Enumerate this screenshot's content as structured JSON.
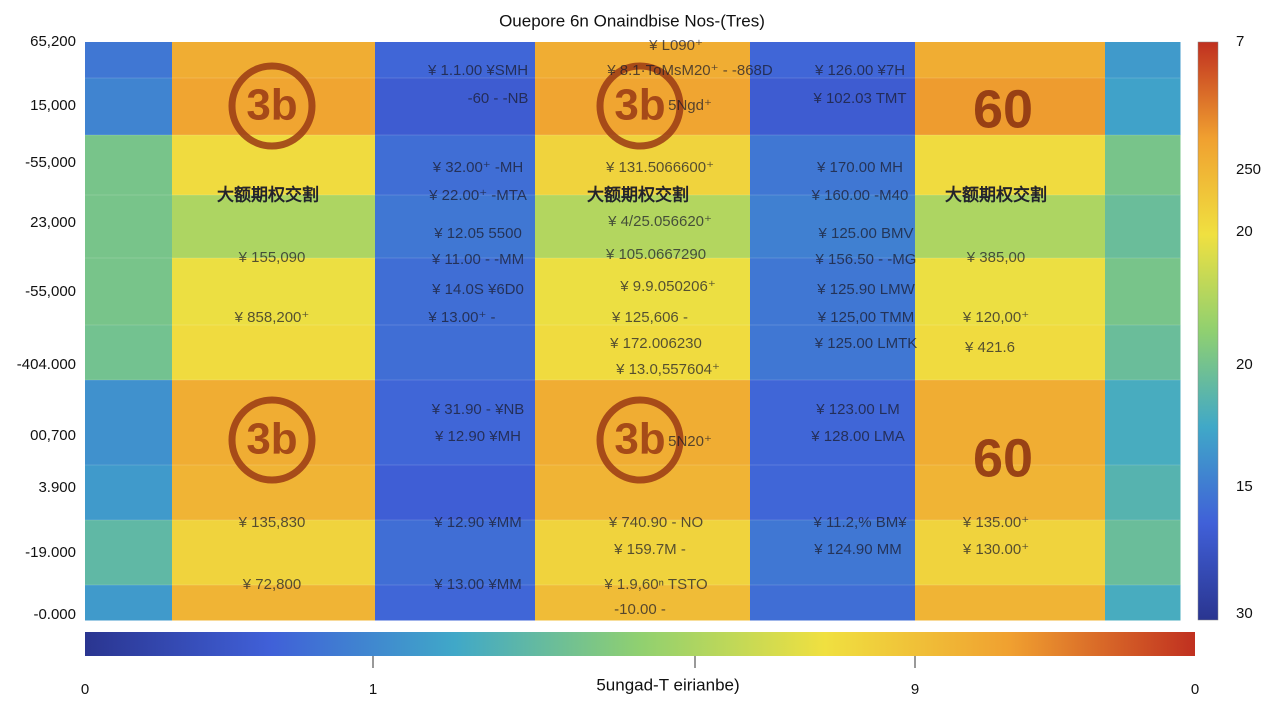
{
  "chart_data": {
    "type": "heatmap",
    "title": "Ouepore 6n Onaindbise Nos-(Tres)",
    "x_label": "5ungad-T eirianbe)",
    "y_categories": [
      "65,200",
      "15,000",
      "-55,000",
      "23,000",
      "-55,000",
      "-404.000",
      "00,700",
      "3.900",
      "-19.000",
      "-0.000"
    ],
    "values": [
      [
        0.22,
        0.8,
        0.18,
        0.8,
        0.18,
        0.8,
        0.3
      ],
      [
        0.25,
        0.82,
        0.15,
        0.82,
        0.15,
        0.84,
        0.32
      ],
      [
        0.45,
        0.68,
        0.2,
        0.7,
        0.22,
        0.68,
        0.45
      ],
      [
        0.45,
        0.55,
        0.22,
        0.56,
        0.24,
        0.55,
        0.42
      ],
      [
        0.45,
        0.66,
        0.2,
        0.66,
        0.22,
        0.66,
        0.45
      ],
      [
        0.44,
        0.68,
        0.2,
        0.68,
        0.22,
        0.68,
        0.42
      ],
      [
        0.28,
        0.8,
        0.18,
        0.8,
        0.18,
        0.8,
        0.35
      ],
      [
        0.3,
        0.78,
        0.16,
        0.78,
        0.18,
        0.78,
        0.38
      ],
      [
        0.4,
        0.7,
        0.2,
        0.7,
        0.22,
        0.7,
        0.42
      ],
      [
        0.3,
        0.78,
        0.18,
        0.76,
        0.2,
        0.78,
        0.35
      ]
    ],
    "colors": [
      "#2a3590",
      "#4060d8",
      "#40a8c8",
      "#90d070",
      "#f0e040",
      "#f0a030",
      "#c03020"
    ],
    "colorbar_labels": [
      "7",
      "250",
      "20",
      "20",
      "15",
      "30"
    ],
    "bottom_colorbar_labels": [
      "0",
      "1",
      "9",
      "0"
    ],
    "badges": [
      "60",
      "60"
    ],
    "logos": [
      "3b",
      "3b",
      "3b",
      "3b"
    ],
    "annotations": [
      "¥ L090⁺",
      "¥ 1.1.00 ¥SMH",
      "¥ 8.1·ToMsM20⁺ - -868D",
      "¥ 126.00 ¥7H",
      "-60 - -NB",
      "5Ngd⁺",
      "¥ 102.03 TMT",
      "¥ 32.00⁺ -MH",
      "¥ 131.5066600⁺",
      "¥ 170.00 MH",
      "大额期权交割",
      "¥ 22.00⁺ -MTA",
      "大额期权交割",
      "¥ 160.00 -M40",
      "大额期权交割",
      "¥ 4/25.056620⁺",
      "¥ 12.05 5500",
      "¥ 125.00 BMV",
      "¥ 155,090",
      "¥ 11.00 - -MM",
      "¥ 105.0667290",
      "¥ 156.50 - -MG",
      "¥ 385,00",
      "¥ 14.0S ¥6D0",
      "¥ 9.9.050206⁺",
      "¥ 125.90 LMW",
      "¥ 858,200⁺",
      "¥ 13.00⁺ -",
      "¥ 125,606 -",
      "¥ 125,00 TMM",
      "¥ 120,00⁺",
      "¥ 172.006230",
      "¥ 125.00 LMTK",
      "¥ 421.6",
      "¥ 13.0,557604⁺",
      "¥ 31.90 - ¥NB",
      "¥ 123.00 LM",
      "¥ 12.90 ¥MH",
      "5N20⁺",
      "¥ 128.00 LMA",
      "¥ 135,830",
      "¥ 12.90 ¥MM",
      "¥ 740.90 - NO",
      "¥ 11.2,% BM¥",
      "¥ 135.00⁺",
      "¥ 159.7M -",
      "¥ 124.90 MM",
      "¥ 130.00⁺",
      "¥ 72,800",
      "¥ 13.00 ¥MM",
      "¥ 1.9,60ⁿ TSTO",
      "-10.00 -"
    ]
  }
}
